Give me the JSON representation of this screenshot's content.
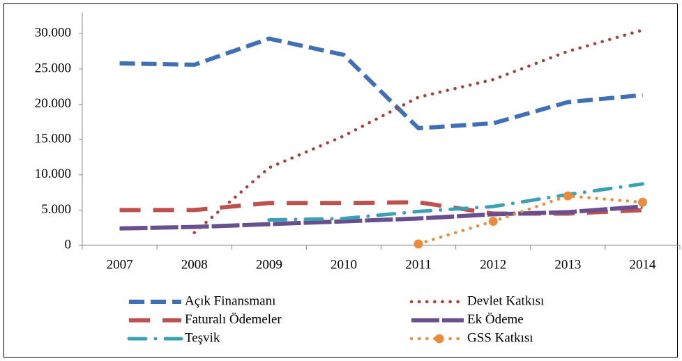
{
  "chart_data": {
    "type": "line",
    "categories": [
      "2007",
      "2008",
      "2009",
      "2010",
      "2011",
      "2012",
      "2013",
      "2014"
    ],
    "ylim": [
      0,
      33000
    ],
    "yticks": [
      0,
      {
        "value": 5000,
        "label": "5.000"
      },
      {
        "value": 10000,
        "label": "10.000"
      },
      {
        "value": 15000,
        "label": "15.000"
      },
      {
        "value": 20000,
        "label": "20.000"
      },
      {
        "value": 25000,
        "label": "25.000"
      },
      {
        "value": 30000,
        "label": "30.000"
      }
    ],
    "series": [
      {
        "name": "Açık Finansmanı",
        "color": "#3f6fb5",
        "values": [
          25800,
          25600,
          29300,
          27000,
          16600,
          17300,
          20300,
          21300
        ]
      },
      {
        "name": "Devlet Katkısı",
        "color": "#a33f3c",
        "values": [
          null,
          1800,
          11000,
          15500,
          21000,
          23500,
          27500,
          30500
        ]
      },
      {
        "name": "Faturalı Ödemeler",
        "color": "#c0504d",
        "values": [
          5000,
          5000,
          6000,
          6000,
          6100,
          4500,
          4500,
          5000
        ]
      },
      {
        "name": "Ek Ödeme",
        "color": "#6a4f8f",
        "values": [
          2400,
          2600,
          3000,
          3400,
          3800,
          4400,
          4700,
          5500
        ]
      },
      {
        "name": "Teşvik",
        "color": "#3aa0b4",
        "values": [
          null,
          null,
          3600,
          3800,
          4800,
          5500,
          7200,
          8700
        ]
      },
      {
        "name": "GSS Katkısı",
        "color": "#e98b3a",
        "values": [
          null,
          null,
          null,
          null,
          200,
          3400,
          7000,
          6100
        ]
      }
    ]
  }
}
